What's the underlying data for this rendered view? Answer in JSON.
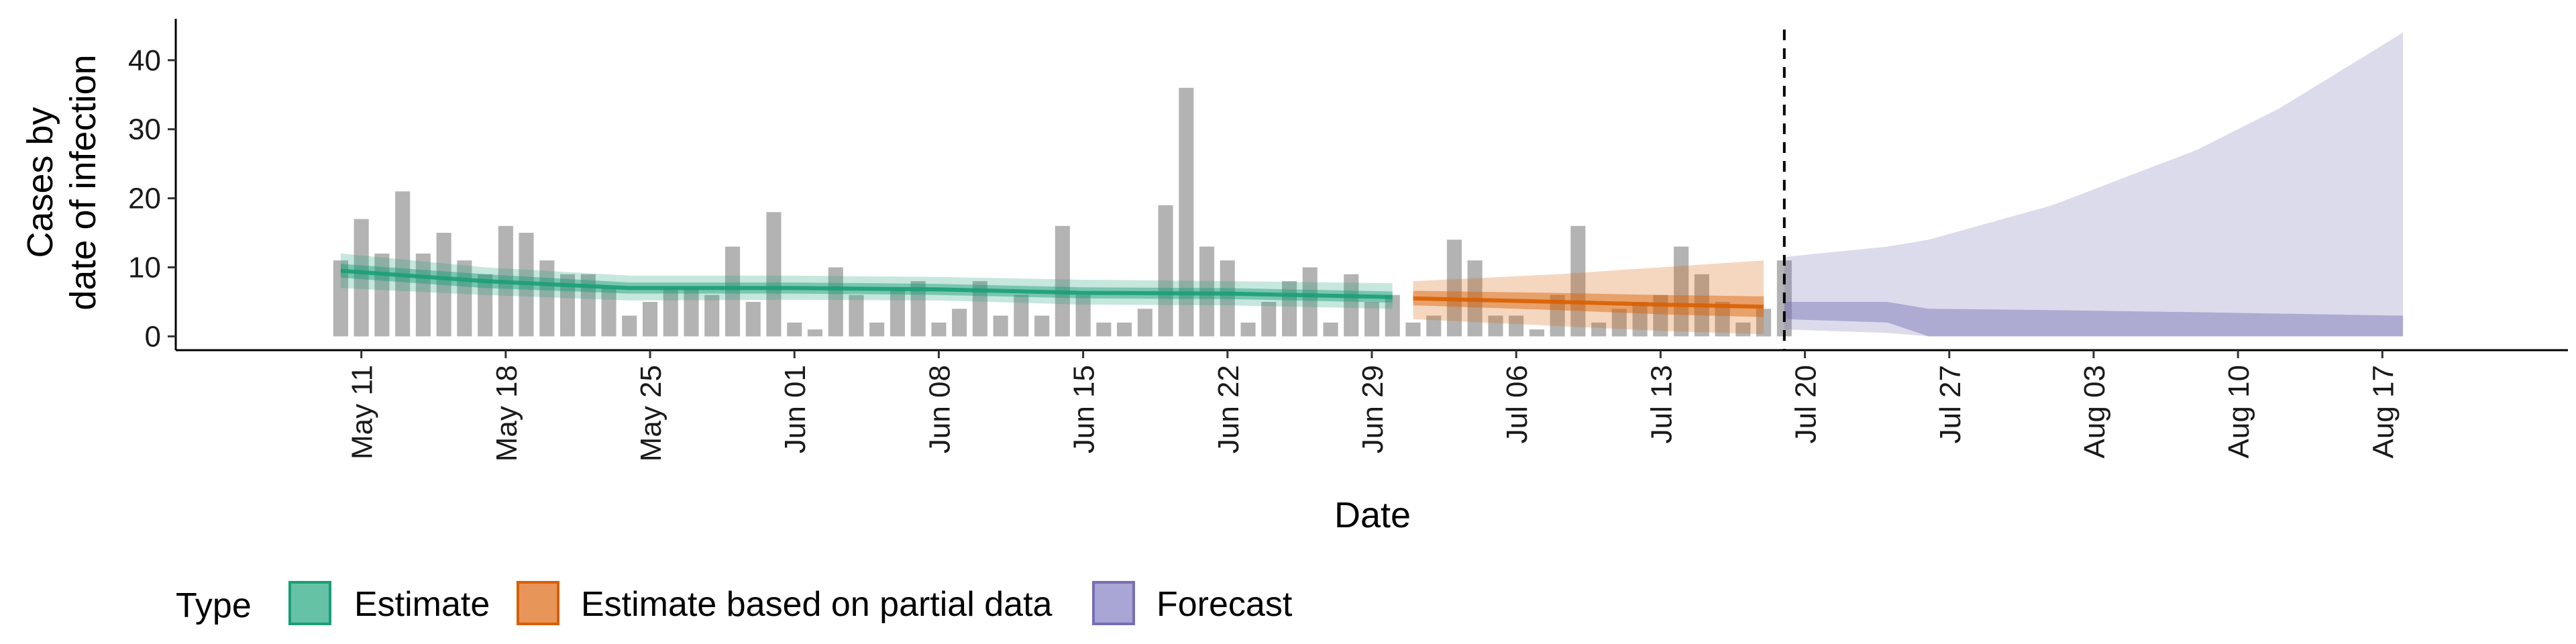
{
  "chart_data": {
    "type": "bar",
    "title": "",
    "xlabel": "Date",
    "ylabel": [
      "Cases by",
      "date of infection"
    ],
    "y_ticks": [
      0,
      10,
      20,
      30,
      40
    ],
    "ylim": [
      -2,
      46
    ],
    "xlim": [
      "2020-05-02",
      "2020-08-26"
    ],
    "x_ticks": [
      {
        "date": "2020-05-11",
        "label": "May 11"
      },
      {
        "date": "2020-05-18",
        "label": "May 18"
      },
      {
        "date": "2020-05-25",
        "label": "May 25"
      },
      {
        "date": "2020-06-01",
        "label": "Jun 01"
      },
      {
        "date": "2020-06-08",
        "label": "Jun 08"
      },
      {
        "date": "2020-06-15",
        "label": "Jun 15"
      },
      {
        "date": "2020-06-22",
        "label": "Jun 22"
      },
      {
        "date": "2020-06-29",
        "label": "Jun 29"
      },
      {
        "date": "2020-07-06",
        "label": "Jul 06"
      },
      {
        "date": "2020-07-13",
        "label": "Jul 13"
      },
      {
        "date": "2020-07-20",
        "label": "Jul 20"
      },
      {
        "date": "2020-07-27",
        "label": "Jul 27"
      },
      {
        "date": "2020-08-03",
        "label": "Aug 03"
      },
      {
        "date": "2020-08-10",
        "label": "Aug 10"
      },
      {
        "date": "2020-08-17",
        "label": "Aug 17"
      }
    ],
    "forecast_start": "2020-07-19",
    "bars": {
      "start_date": "2020-05-10",
      "values": [
        11,
        17,
        12,
        21,
        12,
        15,
        11,
        9,
        16,
        15,
        11,
        9,
        9,
        7,
        3,
        5,
        7,
        7,
        6,
        13,
        5,
        18,
        2,
        1,
        10,
        6,
        2,
        7,
        8,
        2,
        4,
        8,
        3,
        6,
        3,
        16,
        6,
        2,
        2,
        4,
        19,
        36,
        13,
        11,
        2,
        5,
        8,
        10,
        2,
        9,
        5,
        6,
        2,
        3,
        14,
        11,
        3,
        3,
        1,
        6,
        16,
        2,
        4,
        5,
        6,
        13,
        9,
        5,
        2,
        4,
        11
      ]
    },
    "series": [
      {
        "name": "Estimate",
        "color": "#1b9e77",
        "points": [
          {
            "date": "2020-05-10",
            "median": 9.5,
            "lower50": 8.5,
            "upper50": 10.5,
            "lower90": 7,
            "upper90": 12
          },
          {
            "date": "2020-05-17",
            "median": 8,
            "lower50": 7,
            "upper50": 9,
            "lower90": 6,
            "upper90": 10
          },
          {
            "date": "2020-05-24",
            "median": 7,
            "lower50": 6.2,
            "upper50": 7.8,
            "lower90": 5.2,
            "upper90": 8.8
          },
          {
            "date": "2020-06-01",
            "median": 7,
            "lower50": 6.2,
            "upper50": 7.8,
            "lower90": 5.3,
            "upper90": 8.8
          },
          {
            "date": "2020-06-08",
            "median": 6.8,
            "lower50": 6,
            "upper50": 7.6,
            "lower90": 5.2,
            "upper90": 8.6
          },
          {
            "date": "2020-06-15",
            "median": 6.3,
            "lower50": 5.5,
            "upper50": 7.1,
            "lower90": 4.6,
            "upper90": 8.2
          },
          {
            "date": "2020-06-22",
            "median": 6.2,
            "lower50": 5.4,
            "upper50": 7,
            "lower90": 4.5,
            "upper90": 8
          },
          {
            "date": "2020-06-30",
            "median": 5.7,
            "lower50": 4.9,
            "upper50": 6.5,
            "lower90": 4,
            "upper90": 7.7
          }
        ]
      },
      {
        "name": "Estimate based on partial data",
        "color": "#d95f02",
        "points": [
          {
            "date": "2020-07-01",
            "median": 5.5,
            "lower50": 4.5,
            "upper50": 6.6,
            "lower90": 2.5,
            "upper90": 8
          },
          {
            "date": "2020-07-08",
            "median": 5,
            "lower50": 3.8,
            "upper50": 6.3,
            "lower90": 1.5,
            "upper90": 9
          },
          {
            "date": "2020-07-13",
            "median": 4.6,
            "lower50": 3.2,
            "upper50": 6,
            "lower90": 0.8,
            "upper90": 10
          },
          {
            "date": "2020-07-18",
            "median": 4.3,
            "lower50": 2.8,
            "upper50": 5.8,
            "lower90": 0.3,
            "upper90": 11
          }
        ]
      },
      {
        "name": "Forecast",
        "color": "#7570b3",
        "points": [
          {
            "date": "2020-07-19",
            "lower50": 2.5,
            "upper50": 5,
            "lower90": 1,
            "upper90": 11.5
          },
          {
            "date": "2020-07-24",
            "lower50": 2,
            "upper50": 5,
            "lower90": 0.5,
            "upper90": 13
          },
          {
            "date": "2020-07-26",
            "lower50": 0,
            "upper50": 4,
            "lower90": 0,
            "upper90": 14
          },
          {
            "date": "2020-08-01",
            "lower50": 0,
            "upper50": 3.8,
            "lower90": 0,
            "upper90": 19
          },
          {
            "date": "2020-08-08",
            "lower50": 0,
            "upper50": 3.5,
            "lower90": 0,
            "upper90": 27
          },
          {
            "date": "2020-08-12",
            "lower50": 0,
            "upper50": 3.3,
            "lower90": 0,
            "upper90": 33
          },
          {
            "date": "2020-08-18",
            "lower50": 0,
            "upper50": 3,
            "lower90": 0,
            "upper90": 44
          }
        ]
      }
    ],
    "legend": {
      "title": "Type",
      "position": "bottom",
      "entries": [
        {
          "label": "Estimate",
          "fill": "#66c2a5",
          "stroke": "#1b9e77"
        },
        {
          "label": "Estimate based on partial data",
          "fill": "#e8955a",
          "stroke": "#d95f02"
        },
        {
          "label": "Forecast",
          "fill": "#a9a5d4",
          "stroke": "#7570b3"
        }
      ]
    },
    "grid": false
  }
}
